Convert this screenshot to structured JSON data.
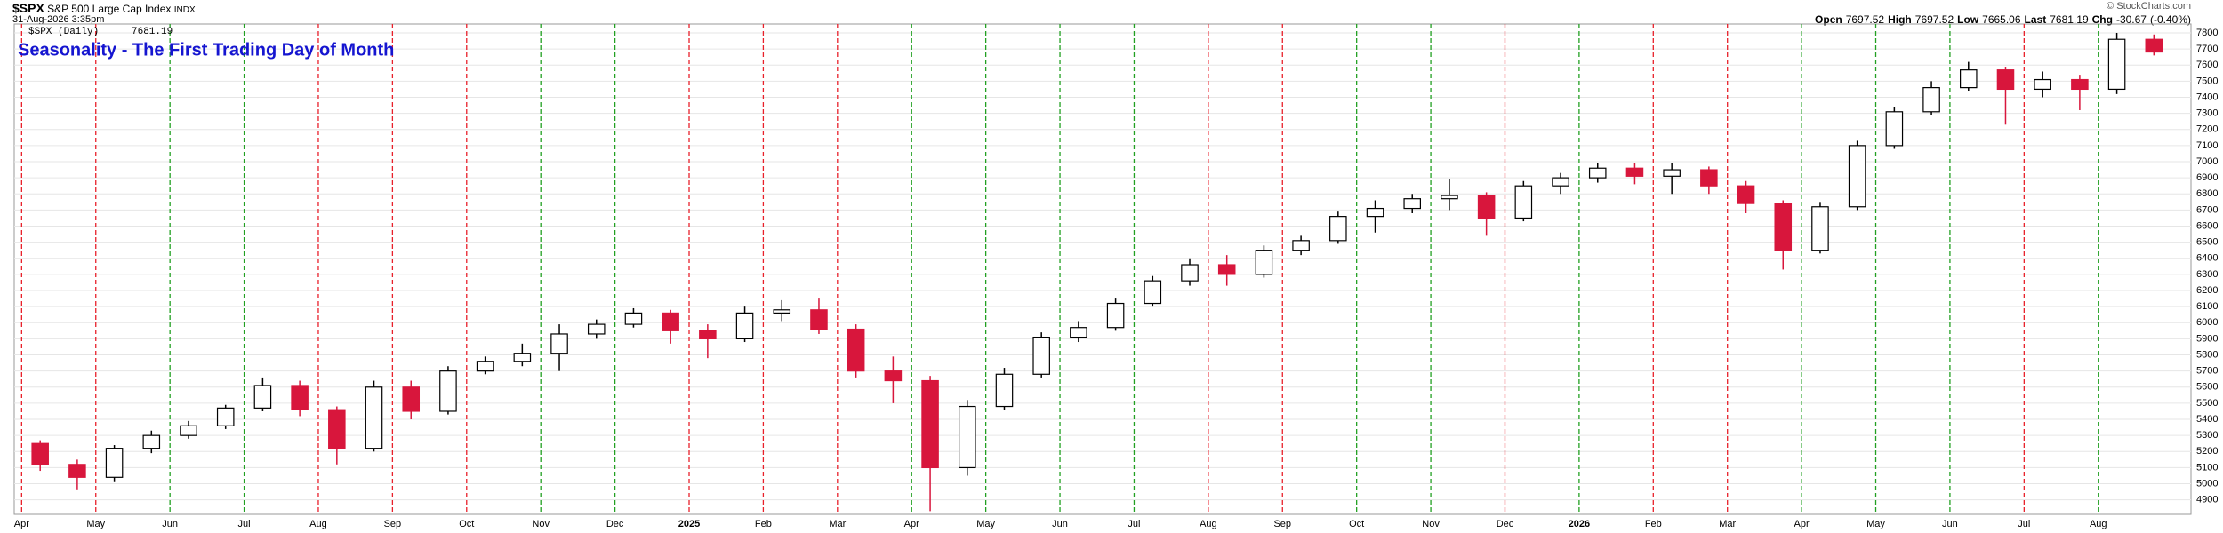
{
  "header": {
    "symbol": "$SPX",
    "name": "S&P 500 Large Cap Index",
    "exchange": "INDX",
    "date": "31-Aug-2026 3:35pm",
    "copyright": "© StockCharts.com",
    "quote": [
      {
        "label": "Open",
        "value": 7697.52
      },
      {
        "label": "High",
        "value": 7697.52
      },
      {
        "label": "Low",
        "value": 7665.06
      },
      {
        "label": "Last",
        "value": 7681.19
      },
      {
        "label": "Chg",
        "value": -30.67
      }
    ],
    "chg_pct": {
      "value": -0.4,
      "label": "(-0.40%)"
    }
  },
  "chart_data": {
    "type": "candlestick",
    "title": "Seasonality - The First Trading Day of Month",
    "legend_label": "$SPX (Daily)",
    "legend_value": 7681.19,
    "open": [
      5250,
      5120,
      5040,
      5220,
      5300,
      5360,
      5470,
      5610,
      5460,
      5220,
      5600,
      5450,
      5700,
      5760,
      5810,
      5930,
      5990,
      6060,
      5950,
      5900,
      6060,
      6080,
      5960,
      5700,
      5640,
      5100,
      5480,
      5680,
      5910,
      5970,
      6120,
      6260,
      6360,
      6300,
      6450,
      6510,
      6660,
      6710,
      6770,
      6790,
      6650,
      6850,
      6900,
      6960,
      6910,
      6950,
      6850,
      6740,
      6450,
      6720,
      7100,
      7310,
      7460,
      7570,
      7450,
      7510,
      7450,
      7760
    ],
    "high": [
      5270,
      5150,
      5240,
      5330,
      5390,
      5490,
      5660,
      5640,
      5480,
      5640,
      5640,
      5730,
      5790,
      5870,
      5990,
      6020,
      6090,
      6080,
      5990,
      6100,
      6140,
      6150,
      5990,
      5790,
      5670,
      5520,
      5720,
      5940,
      6010,
      6150,
      6290,
      6400,
      6420,
      6480,
      6540,
      6690,
      6760,
      6800,
      6890,
      6810,
      6880,
      6930,
      6990,
      6990,
      6990,
      6970,
      6880,
      6760,
      6750,
      7130,
      7340,
      7500,
      7620,
      7590,
      7560,
      7540,
      7800,
      7790
    ],
    "low": [
      5080,
      4960,
      5010,
      5190,
      5280,
      5340,
      5450,
      5420,
      5120,
      5200,
      5400,
      5430,
      5680,
      5730,
      5700,
      5900,
      5970,
      5870,
      5780,
      5880,
      6010,
      5930,
      5660,
      5500,
      4830,
      5050,
      5460,
      5660,
      5880,
      5950,
      6100,
      6230,
      6230,
      6280,
      6420,
      6490,
      6560,
      6680,
      6700,
      6540,
      6630,
      6800,
      6870,
      6860,
      6800,
      6800,
      6680,
      6330,
      6430,
      6700,
      7080,
      7290,
      7440,
      7230,
      7400,
      7320,
      7420,
      7660
    ],
    "close": [
      5120,
      5040,
      5220,
      5300,
      5360,
      5470,
      5610,
      5460,
      5220,
      5600,
      5450,
      5700,
      5760,
      5810,
      5930,
      5990,
      6060,
      5950,
      5900,
      6060,
      6080,
      5960,
      5700,
      5640,
      5100,
      5480,
      5680,
      5910,
      5970,
      6120,
      6260,
      6360,
      6300,
      6450,
      6510,
      6660,
      6710,
      6770,
      6790,
      6650,
      6850,
      6900,
      6960,
      6910,
      6950,
      6850,
      6740,
      6450,
      6720,
      7100,
      7310,
      7460,
      7570,
      7450,
      7510,
      7450,
      7760,
      7681
    ],
    "up_color": "#000000",
    "down_color": "#d8163c",
    "xlim": [
      -0.7,
      58
    ],
    "xticks": [
      {
        "value": -0.5,
        "label": "Apr"
      },
      {
        "value": 1.5,
        "label": "May"
      },
      {
        "value": 3.5,
        "label": "Jun"
      },
      {
        "value": 5.5,
        "label": "Jul"
      },
      {
        "value": 7.5,
        "label": "Aug"
      },
      {
        "value": 9.5,
        "label": "Sep"
      },
      {
        "value": 11.5,
        "label": "Oct"
      },
      {
        "value": 13.5,
        "label": "Nov"
      },
      {
        "value": 15.5,
        "label": "Dec"
      },
      {
        "value": 17.5,
        "label": "2025"
      },
      {
        "value": 19.5,
        "label": "Feb"
      },
      {
        "value": 21.5,
        "label": "Mar"
      },
      {
        "value": 23.5,
        "label": "Apr"
      },
      {
        "value": 25.5,
        "label": "May"
      },
      {
        "value": 27.5,
        "label": "Jun"
      },
      {
        "value": 29.5,
        "label": "Jul"
      },
      {
        "value": 31.5,
        "label": "Aug"
      },
      {
        "value": 33.5,
        "label": "Sep"
      },
      {
        "value": 35.5,
        "label": "Oct"
      },
      {
        "value": 37.5,
        "label": "Nov"
      },
      {
        "value": 39.5,
        "label": "Dec"
      },
      {
        "value": 41.5,
        "label": "2026"
      },
      {
        "value": 43.5,
        "label": "Feb"
      },
      {
        "value": 45.5,
        "label": "Mar"
      },
      {
        "value": 47.5,
        "label": "Apr"
      },
      {
        "value": 49.5,
        "label": "May"
      },
      {
        "value": 51.5,
        "label": "Jun"
      },
      {
        "value": 53.5,
        "label": "Jul"
      },
      {
        "value": 55.5,
        "label": "Aug"
      }
    ],
    "first_day_colors": [
      "#e8202a",
      "#e8202a",
      "#22a022",
      "#22a022",
      "#e8202a",
      "#e8202a",
      "#e8202a",
      "#22a022",
      "#22a022",
      "#e8202a",
      "#e8202a",
      "#e8202a",
      "#22a022",
      "#22a022",
      "#22a022",
      "#22a022",
      "#e8202a",
      "#e8202a",
      "#22a022",
      "#22a022",
      "#e8202a",
      "#22a022",
      "#e8202a",
      "#e8202a",
      "#22a022",
      "#22a022",
      "#22a022",
      "#e8202a",
      "#22a022"
    ],
    "ylim": [
      4810,
      7855
    ],
    "yticks": [
      4900,
      5000,
      5100,
      5200,
      5300,
      5400,
      5500,
      5600,
      5700,
      5800,
      5900,
      6000,
      6100,
      6200,
      6300,
      6400,
      6500,
      6600,
      6700,
      6800,
      6900,
      7000,
      7100,
      7200,
      7300,
      7400,
      7500,
      7600,
      7700,
      7800
    ],
    "grid": true
  }
}
